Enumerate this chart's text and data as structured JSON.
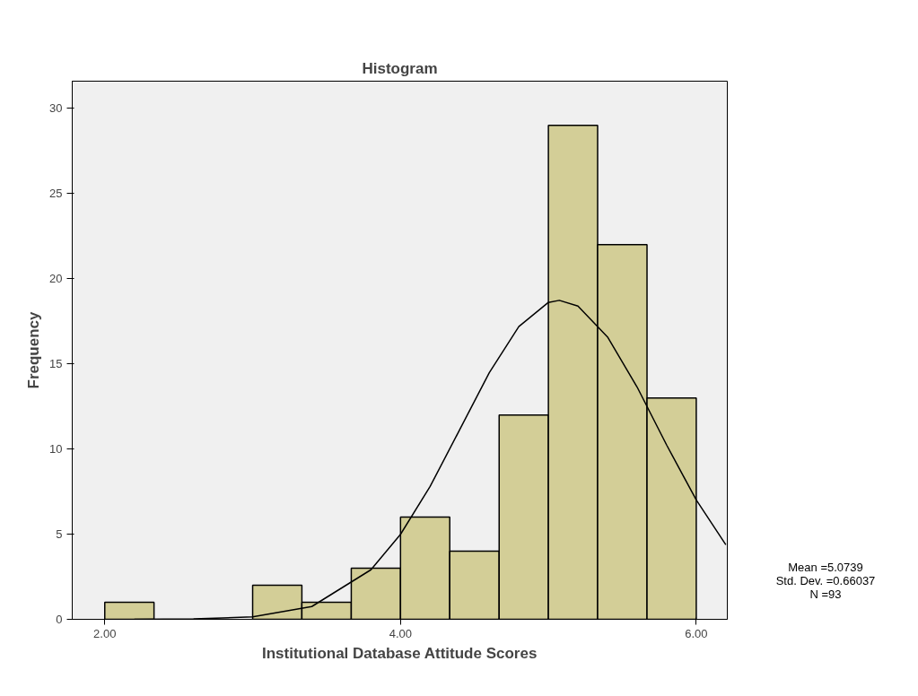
{
  "chart_data": {
    "type": "histogram",
    "title": "Histogram",
    "xlabel": "Institutional Database Attitude Scores",
    "ylabel": "Frequency",
    "bins": [
      2.0,
      2.333,
      2.667,
      3.0,
      3.333,
      3.667,
      4.0,
      4.333,
      4.667,
      5.0,
      5.333,
      5.667,
      6.0
    ],
    "values": [
      1,
      0,
      0,
      2,
      1,
      3,
      6,
      4,
      12,
      29,
      22,
      13
    ],
    "color": "#d3ce97",
    "series": [
      {
        "type": "line",
        "color": "#000000",
        "x": [
          2.2,
          2.6,
          3.0,
          3.4,
          3.8,
          4.0,
          4.2,
          4.4,
          4.6,
          4.8,
          5.0,
          5.0739,
          5.2,
          5.4,
          5.6,
          5.8,
          6.0,
          6.2
        ],
        "values": [
          0.0,
          0.02,
          0.14,
          0.75,
          2.91,
          4.99,
          7.8,
          11.13,
          14.48,
          17.19,
          18.61,
          18.73,
          18.39,
          16.58,
          13.64,
          10.23,
          7.01,
          4.38
        ]
      }
    ],
    "xlim": [
      1.78,
      6.21
    ],
    "ylim": [
      0,
      31.6
    ],
    "xticks": [
      {
        "value": 2,
        "label": "2.00"
      },
      {
        "value": 4,
        "label": "4.00"
      },
      {
        "value": 6,
        "label": "6.00"
      }
    ],
    "yticks": [
      0,
      5,
      10,
      15,
      20,
      25,
      30
    ],
    "grid": false,
    "annotations": [
      "Mean =5.0739",
      "Std. Dev. =0.66037",
      "N =93"
    ]
  }
}
